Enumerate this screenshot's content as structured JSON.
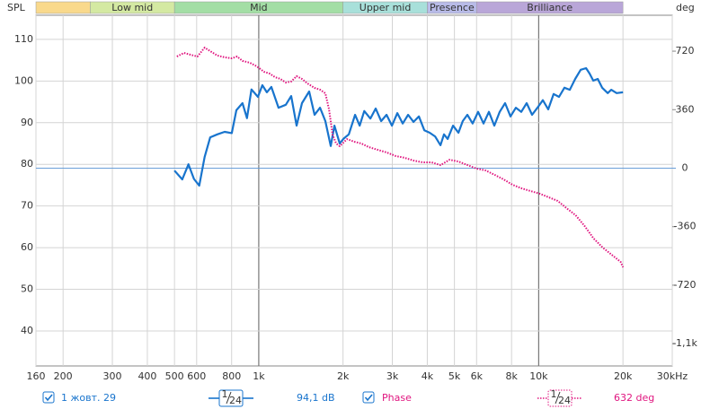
{
  "chart_data": {
    "type": "line",
    "y_axis_label": "SPL",
    "y2_axis_label": "deg",
    "x_log_scale": true,
    "grid": true,
    "xlim": [
      160,
      30000
    ],
    "ylim": [
      31.6,
      115.8
    ],
    "y2lim": [
      -1217,
      941
    ],
    "xticks": [
      160,
      200,
      300,
      400,
      500,
      600,
      800,
      {
        "value": 1000,
        "label": "1k"
      },
      {
        "value": 2000,
        "label": "2k"
      },
      {
        "value": 3000,
        "label": "3k"
      },
      {
        "value": 4000,
        "label": "4k"
      },
      {
        "value": 5000,
        "label": "5k"
      },
      {
        "value": 6000,
        "label": "6k"
      },
      {
        "value": 8000,
        "label": "8k"
      },
      {
        "value": 10000,
        "label": "10k"
      },
      {
        "value": 20000,
        "label": "20k"
      },
      {
        "value": 30000,
        "label": "30kHz"
      }
    ],
    "yticks": [
      40,
      50,
      60,
      70,
      80,
      90,
      100,
      110
    ],
    "y2ticks": [
      {
        "value": -1080,
        "label": "-1,1k"
      },
      -720,
      -360,
      0,
      360,
      720
    ],
    "bands": [
      {
        "label": null,
        "from": 160,
        "to": 250,
        "color": "#f9d98c"
      },
      {
        "label": "Low mid",
        "from": 250,
        "to": 500,
        "color": "#d4e9a2"
      },
      {
        "label": "Mid",
        "from": 500,
        "to": 2000,
        "color": "#a3dea5"
      },
      {
        "label": "Upper mid",
        "from": 2000,
        "to": 4000,
        "color": "#a8e0da"
      },
      {
        "label": "Presence",
        "from": 4000,
        "to": 6000,
        "color": "#b8bbe8"
      },
      {
        "label": "Brilliance",
        "from": 6000,
        "to": 20000,
        "color": "#b9a6d8"
      }
    ],
    "series": [
      {
        "name": "1 жовт. 29",
        "color": "#1874cd",
        "dotted": false,
        "smoothing": [
          "1",
          "24"
        ],
        "readout": "94,1 dB",
        "x": [
          500,
          533,
          561,
          587,
          613,
          641,
          671,
          711,
          755,
          801,
          832,
          875,
          908,
          942,
          993,
          1030,
          1069,
          1109,
          1177,
          1249,
          1306,
          1365,
          1427,
          1514,
          1583,
          1655,
          1729,
          1808,
          1864,
          1947,
          2005,
          2097,
          2208,
          2293,
          2381,
          2504,
          2617,
          2736,
          2860,
          2990,
          3126,
          3268,
          3416,
          3571,
          3733,
          3902,
          4079,
          4264,
          4458,
          4590,
          4730,
          4944,
          5169,
          5356,
          5559,
          5810,
          6076,
          6352,
          6640,
          6942,
          7256,
          7585,
          7930,
          8290,
          8666,
          9059,
          9471,
          9900,
          10350,
          10820,
          11310,
          11820,
          12360,
          12920,
          13500,
          14120,
          14760,
          15200,
          15670,
          16260,
          16860,
          17640,
          18160,
          18990,
          20000
        ],
        "values": [
          78.5,
          76.4,
          80,
          76.5,
          74.9,
          81.8,
          86.5,
          87.2,
          87.8,
          87.5,
          93,
          94.7,
          91.1,
          98,
          96.2,
          99,
          97.3,
          98.6,
          93.6,
          94.3,
          96.4,
          89.3,
          94.7,
          97.5,
          91.9,
          93.6,
          90.4,
          84.4,
          89.3,
          85,
          86.1,
          87.2,
          91.9,
          89.3,
          92.8,
          91,
          93.4,
          90.4,
          91.9,
          89.3,
          92.3,
          89.8,
          91.9,
          90.2,
          91.5,
          88.2,
          87.6,
          86.7,
          84.6,
          87.2,
          86.1,
          89.3,
          87.6,
          90.4,
          91.9,
          89.8,
          92.6,
          89.8,
          92.6,
          89.3,
          92.6,
          94.7,
          91.5,
          93.6,
          92.6,
          94.7,
          91.9,
          93.6,
          95.4,
          93.2,
          96.9,
          96.2,
          98.4,
          97.9,
          100.5,
          102.7,
          103.1,
          101.8,
          100.1,
          100.5,
          98.4,
          97.1,
          97.9,
          97.1,
          97.3
        ]
      },
      {
        "name": "Phase",
        "color": "#e0157f",
        "dotted": true,
        "axis": "y2",
        "smoothing": [
          "1",
          "24"
        ],
        "readout": "632 deg",
        "x": [
          510,
          541,
          570,
          604,
          641,
          671,
          711,
          755,
          801,
          837,
          875,
          929,
          985,
          1045,
          1093,
          1143,
          1195,
          1249,
          1306,
          1365,
          1427,
          1491,
          1583,
          1655,
          1729,
          1782,
          1835,
          1890,
          1947,
          2066,
          2192,
          2326,
          2468,
          2658,
          2861,
          3082,
          3318,
          3573,
          3848,
          4144,
          4462,
          4805,
          5174,
          5572,
          6000,
          6461,
          6957,
          7491,
          8068,
          8688,
          9356,
          10075,
          10850,
          11680,
          12580,
          13550,
          14590,
          15710,
          16920,
          18220,
          19620,
          20000
        ],
        "values": [
          687,
          709,
          698,
          687,
          742,
          720,
          693,
          682,
          676,
          687,
          660,
          649,
          626,
          593,
          582,
          560,
          549,
          527,
          533,
          566,
          549,
          522,
          494,
          483,
          461,
          362,
          207,
          152,
          135,
          179,
          163,
          152,
          130,
          113,
          97,
          75,
          64,
          47,
          36,
          36,
          19,
          52,
          41,
          19,
          -3,
          -14,
          -41,
          -69,
          -102,
          -124,
          -141,
          -157,
          -179,
          -201,
          -246,
          -290,
          -356,
          -433,
          -488,
          -532,
          -577,
          -610
        ]
      }
    ]
  }
}
